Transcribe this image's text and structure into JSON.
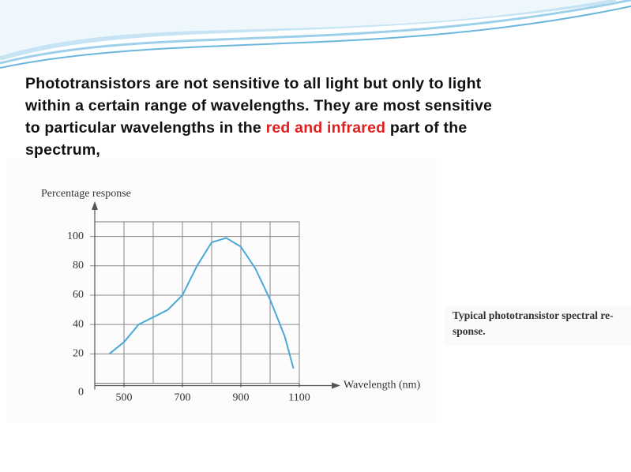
{
  "slide": {
    "paragraph": [
      "Phototransistors are not sensitive to all light but only to light",
      "within a certain range of wavelengths. They are most sensitive",
      "to particular wavelengths in the",
      "red and infrared",
      "part of the",
      "spectrum,"
    ],
    "caption": [
      "Typical phototransistor spectral re-",
      "sponse."
    ]
  },
  "chart_data": {
    "type": "line",
    "y_label": "Percentage response",
    "x_label": "Wavelength (nm)",
    "x": [
      450,
      500,
      550,
      600,
      650,
      700,
      750,
      800,
      850,
      900,
      950,
      1000,
      1050,
      1080
    ],
    "series": [
      {
        "name": "Percentage response",
        "color": "#4aa8d8",
        "values": [
          20,
          28,
          40,
          45,
          50,
          60,
          80,
          96,
          99,
          93,
          78,
          57,
          32,
          10
        ]
      }
    ],
    "xlim": [
      400,
      1100
    ],
    "ylim": [
      0,
      110
    ],
    "xticks": [
      500,
      700,
      900,
      1100
    ],
    "yticks": [
      0,
      20,
      40,
      60,
      80,
      100
    ],
    "grid": true
  }
}
